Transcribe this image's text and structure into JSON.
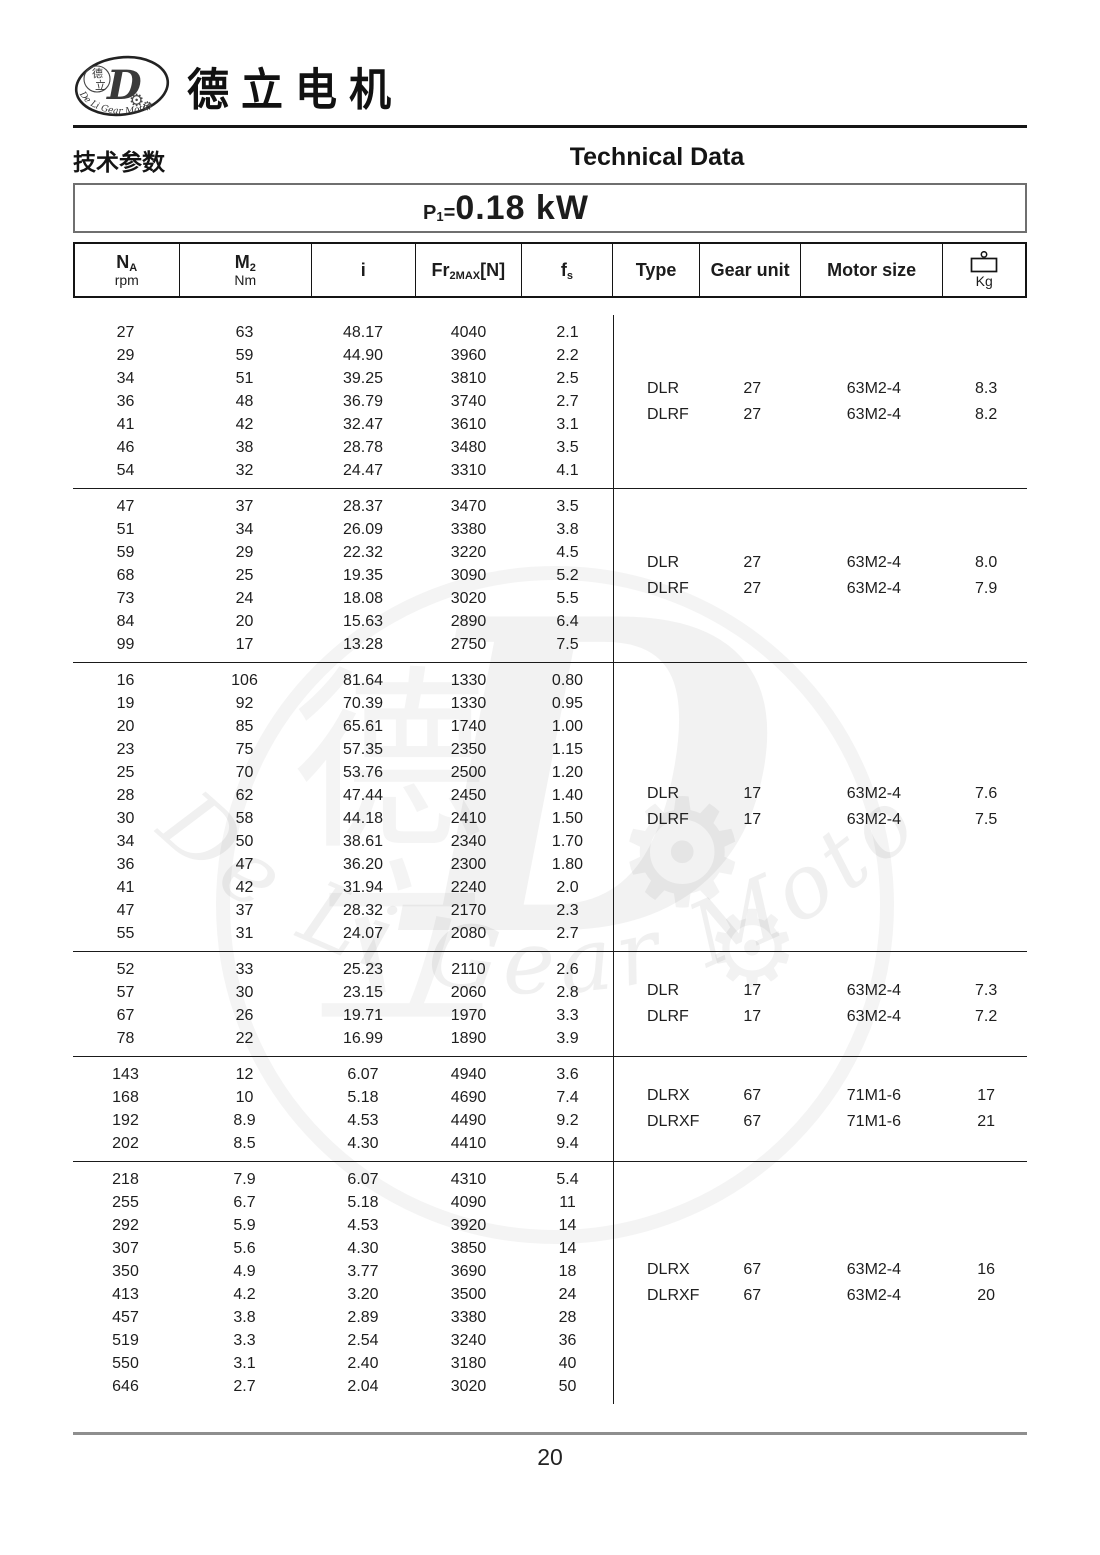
{
  "page": {
    "brand_cn": "德立电机",
    "section_cn": "技术参数",
    "section_en": "Technical Data",
    "power": {
      "p": "P",
      "sub": "1",
      "eq": "=",
      "value": "0.18 kW"
    },
    "page_number": "20"
  },
  "logo": {
    "small_cn_top": "德",
    "small_cn_bottom": "立",
    "letter": "D",
    "arc_text": "De Li Gear Motor",
    "gear_glyph": "⚙"
  },
  "watermark": {
    "cn_top": "德",
    "cn_bottom": "立",
    "letter": "D",
    "arc_text": "De Li Gear Motor",
    "gear_glyph": "⚙"
  },
  "table": {
    "headers": {
      "na": {
        "main": "N",
        "sub": "A",
        "unit": "rpm"
      },
      "m2": {
        "main": "M",
        "sub": "2",
        "unit": "Nm"
      },
      "i": {
        "main": "i"
      },
      "fr": {
        "main": "Fr",
        "sub": "2MAX",
        "post": "[N]"
      },
      "fs": {
        "main": "f",
        "sub": "s"
      },
      "type": "Type",
      "gear_unit": "Gear unit",
      "motor_size": "Motor size",
      "kg": "Kg"
    },
    "groups": [
      {
        "rows": [
          [
            "27",
            "63",
            "48.17",
            "4040",
            "2.1"
          ],
          [
            "29",
            "59",
            "44.90",
            "3960",
            "2.2"
          ],
          [
            "34",
            "51",
            "39.25",
            "3810",
            "2.5"
          ],
          [
            "36",
            "48",
            "36.79",
            "3740",
            "2.7"
          ],
          [
            "41",
            "42",
            "32.47",
            "3610",
            "3.1"
          ],
          [
            "46",
            "38",
            "28.78",
            "3480",
            "3.5"
          ],
          [
            "54",
            "32",
            "24.47",
            "3310",
            "4.1"
          ]
        ],
        "variants": [
          [
            "DLR",
            "27",
            "63M2-4",
            "8.3"
          ],
          [
            "DLRF",
            "27",
            "63M2-4",
            "8.2"
          ]
        ]
      },
      {
        "rows": [
          [
            "47",
            "37",
            "28.37",
            "3470",
            "3.5"
          ],
          [
            "51",
            "34",
            "26.09",
            "3380",
            "3.8"
          ],
          [
            "59",
            "29",
            "22.32",
            "3220",
            "4.5"
          ],
          [
            "68",
            "25",
            "19.35",
            "3090",
            "5.2"
          ],
          [
            "73",
            "24",
            "18.08",
            "3020",
            "5.5"
          ],
          [
            "84",
            "20",
            "15.63",
            "2890",
            "6.4"
          ],
          [
            "99",
            "17",
            "13.28",
            "2750",
            "7.5"
          ]
        ],
        "variants": [
          [
            "DLR",
            "27",
            "63M2-4",
            "8.0"
          ],
          [
            "DLRF",
            "27",
            "63M2-4",
            "7.9"
          ]
        ]
      },
      {
        "rows": [
          [
            "16",
            "106",
            "81.64",
            "1330",
            "0.80"
          ],
          [
            "19",
            "92",
            "70.39",
            "1330",
            "0.95"
          ],
          [
            "20",
            "85",
            "65.61",
            "1740",
            "1.00"
          ],
          [
            "23",
            "75",
            "57.35",
            "2350",
            "1.15"
          ],
          [
            "25",
            "70",
            "53.76",
            "2500",
            "1.20"
          ],
          [
            "28",
            "62",
            "47.44",
            "2450",
            "1.40"
          ],
          [
            "30",
            "58",
            "44.18",
            "2410",
            "1.50"
          ],
          [
            "34",
            "50",
            "38.61",
            "2340",
            "1.70"
          ],
          [
            "36",
            "47",
            "36.20",
            "2300",
            "1.80"
          ],
          [
            "41",
            "42",
            "31.94",
            "2240",
            "2.0"
          ],
          [
            "47",
            "37",
            "28.32",
            "2170",
            "2.3"
          ],
          [
            "55",
            "31",
            "24.07",
            "2080",
            "2.7"
          ]
        ],
        "variants": [
          [
            "DLR",
            "17",
            "63M2-4",
            "7.6"
          ],
          [
            "DLRF",
            "17",
            "63M2-4",
            "7.5"
          ]
        ]
      },
      {
        "rows": [
          [
            "52",
            "33",
            "25.23",
            "2110",
            "2.6"
          ],
          [
            "57",
            "30",
            "23.15",
            "2060",
            "2.8"
          ],
          [
            "67",
            "26",
            "19.71",
            "1970",
            "3.3"
          ],
          [
            "78",
            "22",
            "16.99",
            "1890",
            "3.9"
          ]
        ],
        "variants": [
          [
            "DLR",
            "17",
            "63M2-4",
            "7.3"
          ],
          [
            "DLRF",
            "17",
            "63M2-4",
            "7.2"
          ]
        ]
      },
      {
        "rows": [
          [
            "143",
            "12",
            "6.07",
            "4940",
            "3.6"
          ],
          [
            "168",
            "10",
            "5.18",
            "4690",
            "7.4"
          ],
          [
            "192",
            "8.9",
            "4.53",
            "4490",
            "9.2"
          ],
          [
            "202",
            "8.5",
            "4.30",
            "4410",
            "9.4"
          ]
        ],
        "variants": [
          [
            "DLRX",
            "67",
            "71M1-6",
            "17"
          ],
          [
            "DLRXF",
            "67",
            "71M1-6",
            "21"
          ]
        ]
      },
      {
        "rows": [
          [
            "218",
            "7.9",
            "6.07",
            "4310",
            "5.4"
          ],
          [
            "255",
            "6.7",
            "5.18",
            "4090",
            "11"
          ],
          [
            "292",
            "5.9",
            "4.53",
            "3920",
            "14"
          ],
          [
            "307",
            "5.6",
            "4.30",
            "3850",
            "14"
          ],
          [
            "350",
            "4.9",
            "3.77",
            "3690",
            "18"
          ],
          [
            "413",
            "4.2",
            "3.20",
            "3500",
            "24"
          ],
          [
            "457",
            "3.8",
            "2.89",
            "3380",
            "28"
          ],
          [
            "519",
            "3.3",
            "2.54",
            "3240",
            "36"
          ],
          [
            "550",
            "3.1",
            "2.40",
            "3180",
            "40"
          ],
          [
            "646",
            "2.7",
            "2.04",
            "3020",
            "50"
          ]
        ],
        "variants": [
          [
            "DLRX",
            "67",
            "63M2-4",
            "16"
          ],
          [
            "DLRXF",
            "67",
            "63M2-4",
            "20"
          ]
        ]
      }
    ]
  },
  "colors": {
    "ink": "#1c1c1c",
    "rule_gray": "#8e8e8e",
    "watermark_gray": "#e9e9e9"
  }
}
